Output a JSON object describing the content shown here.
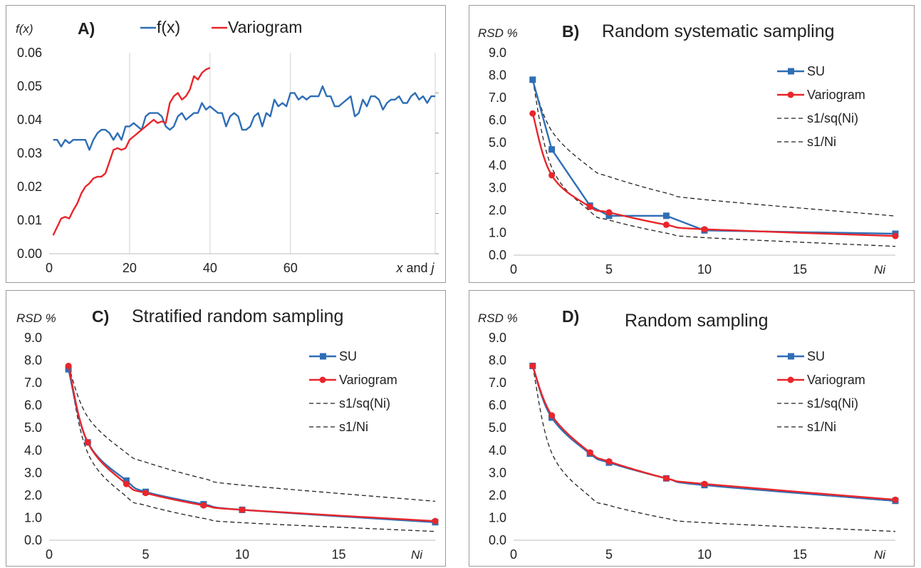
{
  "colors": {
    "blue": "#2e6eb5",
    "red": "#e8262b",
    "black": "#222222",
    "grid": "#d0d0d0"
  },
  "chart_data": [
    {
      "id": "A",
      "type": "line",
      "panel_label": "A)",
      "title": "",
      "ylabel": "f(x)",
      "xlabel": "x and j",
      "xlim": [
        0,
        96
      ],
      "ylim": [
        0,
        0.06
      ],
      "xticks": [
        0,
        20,
        40,
        60
      ],
      "xtick_labels": [
        "0",
        "20",
        "40",
        "60"
      ],
      "yticks": [
        0,
        0.01,
        0.02,
        0.03,
        0.04,
        0.05,
        0.06
      ],
      "ytick_labels": [
        "0.00",
        "0.01",
        "0.02",
        "0.03",
        "0.04",
        "0.05",
        "0.06"
      ],
      "grid": "vertical",
      "legend": "top",
      "series": [
        {
          "name": "f(x)",
          "color": "blue",
          "marker": "none",
          "x": [
            1,
            2,
            3,
            4,
            5,
            6,
            7,
            8,
            9,
            10,
            11,
            12,
            13,
            14,
            15,
            16,
            17,
            18,
            19,
            20,
            21,
            22,
            23,
            24,
            25,
            26,
            27,
            28,
            29,
            30,
            31,
            32,
            33,
            34,
            35,
            36,
            37,
            38,
            39,
            40,
            41,
            42,
            43,
            44,
            45,
            46,
            47,
            48,
            49,
            50,
            51,
            52,
            53,
            54,
            55,
            56,
            57,
            58,
            59,
            60,
            61,
            62,
            63,
            64,
            65,
            66,
            67,
            68,
            69,
            70,
            71,
            72,
            73,
            74,
            75,
            76,
            77,
            78,
            79,
            80,
            81,
            82,
            83,
            84,
            85,
            86,
            87,
            88,
            89,
            90,
            91,
            92,
            93,
            94,
            95,
            96
          ],
          "y": [
            0.034,
            0.034,
            0.032,
            0.034,
            0.033,
            0.034,
            0.034,
            0.034,
            0.034,
            0.031,
            0.034,
            0.036,
            0.037,
            0.037,
            0.036,
            0.034,
            0.036,
            0.034,
            0.038,
            0.038,
            0.039,
            0.038,
            0.037,
            0.041,
            0.042,
            0.042,
            0.042,
            0.041,
            0.038,
            0.037,
            0.038,
            0.041,
            0.042,
            0.04,
            0.041,
            0.042,
            0.042,
            0.045,
            0.043,
            0.044,
            0.043,
            0.042,
            0.042,
            0.038,
            0.041,
            0.042,
            0.041,
            0.037,
            0.037,
            0.038,
            0.041,
            0.042,
            0.038,
            0.042,
            0.041,
            0.046,
            0.044,
            0.045,
            0.044,
            0.048,
            0.048,
            0.046,
            0.047,
            0.046,
            0.047,
            0.047,
            0.047,
            0.05,
            0.047,
            0.047,
            0.044,
            0.044,
            0.045,
            0.046,
            0.047,
            0.041,
            0.042,
            0.046,
            0.044,
            0.047,
            0.047,
            0.046,
            0.043,
            0.045,
            0.046,
            0.046,
            0.047,
            0.045,
            0.045,
            0.047,
            0.048,
            0.046,
            0.047,
            0.045,
            0.047,
            0.047
          ]
        },
        {
          "name": "Variogram",
          "color": "red",
          "marker": "none",
          "x": [
            1,
            2,
            3,
            4,
            5,
            6,
            7,
            8,
            9,
            10,
            11,
            12,
            13,
            14,
            15,
            16,
            17,
            18,
            19,
            20,
            21,
            22,
            23,
            24,
            25,
            26,
            27,
            28,
            29,
            30,
            31,
            32,
            33,
            34,
            35,
            36,
            37,
            38,
            39,
            40
          ],
          "y": [
            0.0055,
            0.008,
            0.0105,
            0.011,
            0.0105,
            0.013,
            0.015,
            0.018,
            0.02,
            0.021,
            0.0225,
            0.023,
            0.023,
            0.024,
            0.0275,
            0.031,
            0.0315,
            0.031,
            0.0315,
            0.034,
            0.035,
            0.036,
            0.037,
            0.038,
            0.039,
            0.04,
            0.039,
            0.0395,
            0.039,
            0.045,
            0.047,
            0.048,
            0.046,
            0.047,
            0.049,
            0.053,
            0.052,
            0.054,
            0.055,
            0.0555
          ]
        }
      ]
    },
    {
      "id": "B",
      "type": "line",
      "panel_label": "B)",
      "title": "Random systematic sampling",
      "ylabel": "RSD %",
      "xlabel": "Ni",
      "xlim": [
        0,
        20
      ],
      "ylim": [
        0,
        9
      ],
      "xticks": [
        0,
        5,
        10,
        15
      ],
      "xtick_labels": [
        "0",
        "5",
        "10",
        "15"
      ],
      "yticks": [
        0,
        1,
        2,
        3,
        4,
        5,
        6,
        7,
        8,
        9
      ],
      "ytick_labels": [
        "0.0",
        "1.0",
        "2.0",
        "3.0",
        "4.0",
        "5.0",
        "6.0",
        "7.0",
        "8.0",
        "9.0"
      ],
      "grid": "none",
      "legend": "top-right",
      "series": [
        {
          "name": "SU",
          "color": "blue",
          "marker": "square",
          "dashed": false,
          "smooth": false,
          "x": [
            1,
            2,
            4,
            5,
            8,
            10,
            20
          ],
          "y": [
            7.8,
            4.7,
            2.2,
            1.75,
            1.75,
            1.1,
            0.95
          ]
        },
        {
          "name": "Variogram",
          "color": "red",
          "marker": "circle",
          "dashed": false,
          "smooth": true,
          "x": [
            1,
            2,
            4,
            5,
            8,
            10,
            20
          ],
          "y": [
            6.3,
            3.55,
            2.15,
            1.9,
            1.35,
            1.15,
            0.85
          ]
        },
        {
          "name": "s1/sq(Ni)",
          "color": "black",
          "marker": "none",
          "dashed": true,
          "smooth": true,
          "x": [
            1,
            2,
            4,
            5,
            8,
            10,
            20
          ],
          "y": [
            7.8,
            5.52,
            3.9,
            3.49,
            2.76,
            2.47,
            1.74
          ]
        },
        {
          "name": "s1/Ni",
          "color": "black",
          "marker": "none",
          "dashed": true,
          "smooth": true,
          "x": [
            1,
            2,
            4,
            5,
            8,
            10,
            20
          ],
          "y": [
            7.8,
            3.9,
            1.95,
            1.56,
            0.98,
            0.78,
            0.39
          ]
        }
      ]
    },
    {
      "id": "C",
      "type": "line",
      "panel_label": "C)",
      "title": "Stratified random sampling",
      "ylabel": "RSD %",
      "xlabel": "Ni",
      "xlim": [
        0,
        20
      ],
      "ylim": [
        0,
        9
      ],
      "xticks": [
        0,
        5,
        10,
        15
      ],
      "xtick_labels": [
        "0",
        "5",
        "10",
        "15"
      ],
      "yticks": [
        0,
        1,
        2,
        3,
        4,
        5,
        6,
        7,
        8,
        9
      ],
      "ytick_labels": [
        "0.0",
        "1.0",
        "2.0",
        "3.0",
        "4.0",
        "5.0",
        "6.0",
        "7.0",
        "8.0",
        "9.0"
      ],
      "grid": "none",
      "legend": "top-right",
      "series": [
        {
          "name": "SU",
          "color": "blue",
          "marker": "square",
          "dashed": false,
          "smooth": true,
          "x": [
            1,
            2,
            4,
            5,
            8,
            10,
            20
          ],
          "y": [
            7.6,
            4.35,
            2.65,
            2.15,
            1.6,
            1.35,
            0.8
          ]
        },
        {
          "name": "Variogram",
          "color": "red",
          "marker": "circle",
          "dashed": false,
          "smooth": true,
          "x": [
            1,
            2,
            4,
            5,
            8,
            10,
            20
          ],
          "y": [
            7.75,
            4.35,
            2.5,
            2.1,
            1.55,
            1.35,
            0.85
          ]
        },
        {
          "name": "s1/sq(Ni)",
          "color": "black",
          "marker": "none",
          "dashed": true,
          "smooth": true,
          "x": [
            1,
            2,
            4,
            5,
            8,
            10,
            20
          ],
          "y": [
            7.75,
            5.48,
            3.88,
            3.47,
            2.74,
            2.45,
            1.73
          ]
        },
        {
          "name": "s1/Ni",
          "color": "black",
          "marker": "none",
          "dashed": true,
          "smooth": true,
          "x": [
            1,
            2,
            4,
            5,
            8,
            10,
            20
          ],
          "y": [
            7.75,
            3.88,
            1.94,
            1.55,
            0.97,
            0.78,
            0.39
          ]
        }
      ]
    },
    {
      "id": "D",
      "type": "line",
      "panel_label": "D)",
      "title": "Random sampling",
      "ylabel": "RSD %",
      "xlabel": "Ni",
      "xlim": [
        0,
        20
      ],
      "ylim": [
        0,
        9
      ],
      "xticks": [
        0,
        5,
        10,
        15
      ],
      "xtick_labels": [
        "0",
        "5",
        "10",
        "15"
      ],
      "yticks": [
        0,
        1,
        2,
        3,
        4,
        5,
        6,
        7,
        8,
        9
      ],
      "ytick_labels": [
        "0.0",
        "1.0",
        "2.0",
        "3.0",
        "4.0",
        "5.0",
        "6.0",
        "7.0",
        "8.0",
        "9.0"
      ],
      "grid": "none",
      "legend": "top-right",
      "series": [
        {
          "name": "SU",
          "color": "blue",
          "marker": "square",
          "dashed": false,
          "smooth": true,
          "x": [
            1,
            2,
            4,
            5,
            8,
            10,
            20
          ],
          "y": [
            7.75,
            5.45,
            3.85,
            3.45,
            2.75,
            2.45,
            1.75
          ]
        },
        {
          "name": "Variogram",
          "color": "red",
          "marker": "circle",
          "dashed": false,
          "smooth": true,
          "x": [
            1,
            2,
            4,
            5,
            8,
            10,
            20
          ],
          "y": [
            7.75,
            5.55,
            3.9,
            3.5,
            2.75,
            2.5,
            1.8
          ]
        },
        {
          "name": "s1/sq(Ni)",
          "color": "black",
          "marker": "none",
          "dashed": true,
          "smooth": true,
          "x": [
            1,
            2,
            4,
            5,
            8,
            10,
            20
          ],
          "y": [
            7.75,
            5.48,
            3.88,
            3.47,
            2.74,
            2.45,
            1.73
          ]
        },
        {
          "name": "s1/Ni",
          "color": "black",
          "marker": "none",
          "dashed": true,
          "smooth": true,
          "x": [
            1,
            2,
            4,
            5,
            8,
            10,
            20
          ],
          "y": [
            7.75,
            3.88,
            1.94,
            1.55,
            0.97,
            0.78,
            0.39
          ]
        }
      ]
    }
  ]
}
